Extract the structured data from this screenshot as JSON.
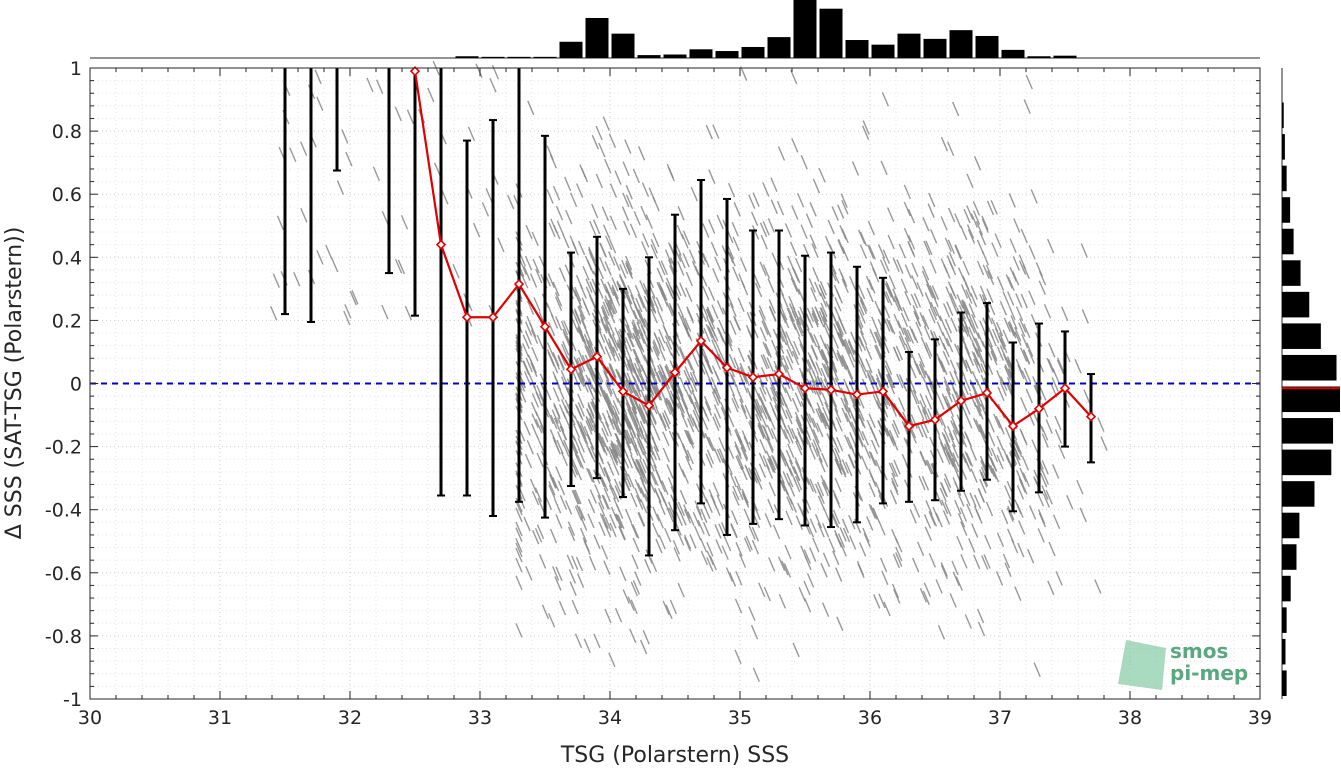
{
  "chart_data": {
    "type": "scatter",
    "xlabel": "TSG (Polarstern) SSS",
    "ylabel": "Δ SSS (SAT-TSG (Polarstern))",
    "xlim": [
      30,
      39
    ],
    "ylim": [
      -1,
      1
    ],
    "x_ticks": [
      30,
      31,
      32,
      33,
      34,
      35,
      36,
      37,
      38,
      39
    ],
    "y_ticks": [
      1,
      0.8,
      0.6,
      0.4,
      0.2,
      0,
      -0.2,
      -0.4,
      -0.6,
      -0.8,
      -1
    ],
    "grid": "dotted",
    "reference_line": {
      "y": 0,
      "color": "#0000c8",
      "style": "dashed"
    },
    "scatter_color": "#888888",
    "mean_series": {
      "color": "#e00000",
      "x": [
        32.5,
        32.7,
        32.9,
        33.1,
        33.3,
        33.5,
        33.7,
        33.9,
        34.1,
        34.3,
        34.5,
        34.7,
        34.9,
        35.1,
        35.3,
        35.5,
        35.7,
        35.9,
        36.1,
        36.3,
        36.5,
        36.7,
        36.9,
        37.1,
        37.3,
        37.5,
        37.7
      ],
      "y": [
        0.99,
        0.44,
        0.21,
        0.21,
        0.315,
        0.18,
        0.045,
        0.085,
        -0.025,
        -0.07,
        0.035,
        0.135,
        0.05,
        0.02,
        0.03,
        -0.015,
        -0.02,
        -0.035,
        -0.025,
        -0.135,
        -0.115,
        -0.055,
        -0.03,
        -0.135,
        -0.08,
        -0.015,
        -0.105
      ]
    },
    "error_bars": {
      "color": "#000000",
      "x": [
        31.5,
        31.7,
        31.9,
        32.3,
        32.5,
        32.7,
        32.9,
        33.1,
        33.3,
        33.5,
        33.7,
        33.9,
        34.1,
        34.3,
        34.5,
        34.7,
        34.9,
        35.1,
        35.3,
        35.5,
        35.7,
        35.9,
        36.1,
        36.3,
        36.5,
        36.7,
        36.9,
        37.1,
        37.3,
        37.5,
        37.7
      ],
      "lo": [
        0.22,
        0.195,
        0.675,
        0.35,
        0.215,
        -0.355,
        -0.355,
        -0.42,
        -0.375,
        -0.425,
        -0.325,
        -0.3,
        -0.36,
        -0.545,
        -0.465,
        -0.38,
        -0.48,
        -0.445,
        -0.43,
        -0.45,
        -0.455,
        -0.44,
        -0.38,
        -0.375,
        -0.37,
        -0.34,
        -0.305,
        -0.405,
        -0.345,
        -0.2,
        -0.25
      ],
      "hi": [
        1,
        1,
        1,
        1,
        1,
        1,
        0.77,
        0.835,
        1,
        0.785,
        0.415,
        0.465,
        0.3,
        0.4,
        0.535,
        0.645,
        0.585,
        0.485,
        0.485,
        0.405,
        0.415,
        0.37,
        0.335,
        0.1,
        0.14,
        0.225,
        0.255,
        0.13,
        0.19,
        0.165,
        0.03
      ]
    },
    "top_histogram": {
      "bin_width": 0.2,
      "x": [
        32.9,
        33.1,
        33.3,
        33.5,
        33.7,
        33.9,
        34.1,
        34.3,
        34.5,
        34.7,
        34.9,
        35.1,
        35.3,
        35.5,
        35.7,
        35.9,
        36.1,
        36.3,
        36.5,
        36.7,
        36.9,
        37.1,
        37.3,
        37.5
      ],
      "values": [
        0.03,
        0.02,
        0.02,
        0.02,
        0.28,
        0.69,
        0.42,
        0.05,
        0.06,
        0.15,
        0.12,
        0.19,
        0.36,
        1.0,
        0.85,
        0.31,
        0.23,
        0.42,
        0.33,
        0.48,
        0.38,
        0.14,
        0.03,
        0.04
      ]
    },
    "right_histogram": {
      "bin_width": 0.1,
      "y": [
        0.85,
        0.75,
        0.65,
        0.55,
        0.45,
        0.35,
        0.25,
        0.15,
        0.05,
        -0.05,
        -0.15,
        -0.25,
        -0.35,
        -0.45,
        -0.55,
        -0.65,
        -0.75,
        -0.85,
        -0.95
      ],
      "values": [
        0.03,
        0.05,
        0.08,
        0.14,
        0.2,
        0.32,
        0.47,
        0.67,
        0.94,
        1.0,
        0.88,
        0.85,
        0.56,
        0.3,
        0.25,
        0.15,
        0.08,
        0.06,
        0.08
      ],
      "mean_line_color": "#e00000"
    }
  },
  "logo": {
    "line1": "smos",
    "line2": "pi-mep",
    "color": "#5aa780"
  }
}
